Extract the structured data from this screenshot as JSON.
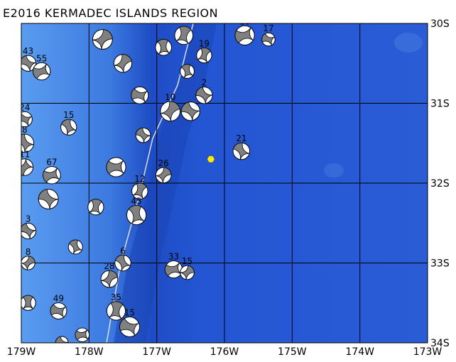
{
  "title": "E2016 KERMADEC ISLANDS REGION",
  "map": {
    "lon_range": [
      -179,
      -173
    ],
    "lat_range": [
      -34,
      -30
    ],
    "lon_ticks": [
      {
        "value": -179,
        "label": "179W"
      },
      {
        "value": -178,
        "label": "178W"
      },
      {
        "value": -177,
        "label": "177W"
      },
      {
        "value": -176,
        "label": "176W"
      },
      {
        "value": -175,
        "label": "175W"
      },
      {
        "value": -174,
        "label": "174W"
      },
      {
        "value": -173,
        "label": "173W"
      }
    ],
    "lat_ticks": [
      {
        "value": -30,
        "label": "30S"
      },
      {
        "value": -31,
        "label": "31S"
      },
      {
        "value": -32,
        "label": "32S"
      },
      {
        "value": -33,
        "label": "33S"
      },
      {
        "value": -34,
        "label": "34S"
      }
    ],
    "grid": true,
    "colors": {
      "ocean": "#2456d4",
      "shallow": "#4f8fe8",
      "deep": "#1a46b8",
      "beachball_fill": "#808080",
      "epicenter": "#ffee00"
    },
    "epicenter": {
      "lon": -176.2,
      "lat": -31.7,
      "marker": "yellow-hexagon"
    },
    "events": [
      {
        "lon": -175.7,
        "lat": -30.15,
        "label": "10"
      },
      {
        "lon": -175.35,
        "lat": -30.2,
        "label": "17"
      },
      {
        "lon": -175.75,
        "lat": -31.6,
        "label": "21"
      },
      {
        "lon": -176.9,
        "lat": -31.9,
        "label": "26"
      },
      {
        "lon": -177.25,
        "lat": -32.1,
        "label": "12"
      },
      {
        "lon": -176.75,
        "lat": -33.08,
        "label": "33"
      },
      {
        "lon": -176.55,
        "lat": -33.12,
        "label": "15"
      },
      {
        "lon": -176.3,
        "lat": -30.4,
        "label": "19"
      },
      {
        "lon": -176.3,
        "lat": -30.9,
        "label": "2"
      },
      {
        "lon": -176.8,
        "lat": -31.1,
        "label": "10"
      },
      {
        "lon": -176.5,
        "lat": -31.1,
        "label": ""
      },
      {
        "lon": -176.55,
        "lat": -30.6,
        "label": ""
      },
      {
        "lon": -177.4,
        "lat": -33.8,
        "label": "15"
      },
      {
        "lon": -177.6,
        "lat": -33.6,
        "label": "35"
      },
      {
        "lon": -177.5,
        "lat": -33.0,
        "label": "6"
      },
      {
        "lon": -177.3,
        "lat": -32.4,
        "label": "45"
      },
      {
        "lon": -178.9,
        "lat": -30.5,
        "label": "43"
      },
      {
        "lon": -178.7,
        "lat": -30.6,
        "label": "55"
      },
      {
        "lon": -178.95,
        "lat": -31.2,
        "label": "24"
      },
      {
        "lon": -178.95,
        "lat": -31.5,
        "label": "8"
      },
      {
        "lon": -178.95,
        "lat": -31.8,
        "label": "11"
      },
      {
        "lon": -178.55,
        "lat": -31.9,
        "label": "67"
      },
      {
        "lon": -178.9,
        "lat": -32.6,
        "label": "3"
      },
      {
        "lon": -178.9,
        "lat": -33.0,
        "label": "8"
      },
      {
        "lon": -178.9,
        "lat": -33.5,
        "label": ""
      },
      {
        "lon": -178.45,
        "lat": -33.6,
        "label": "49"
      },
      {
        "lon": -178.4,
        "lat": -34.0,
        "label": ""
      },
      {
        "lon": -178.1,
        "lat": -33.9,
        "label": ""
      },
      {
        "lon": -178.3,
        "lat": -31.3,
        "label": "15"
      },
      {
        "lon": -177.8,
        "lat": -30.2,
        "label": ""
      },
      {
        "lon": -177.5,
        "lat": -30.5,
        "label": ""
      },
      {
        "lon": -177.2,
        "lat": -31.4,
        "label": ""
      },
      {
        "lon": -177.9,
        "lat": -32.3,
        "label": ""
      },
      {
        "lon": -178.2,
        "lat": -32.8,
        "label": ""
      },
      {
        "lon": -177.7,
        "lat": -33.2,
        "label": "28"
      },
      {
        "lon": -178.6,
        "lat": -32.2,
        "label": ""
      },
      {
        "lon": -177.6,
        "lat": -31.8,
        "label": ""
      },
      {
        "lon": -176.9,
        "lat": -30.3,
        "label": ""
      },
      {
        "lon": -176.6,
        "lat": -30.15,
        "label": ""
      },
      {
        "lon": -177.25,
        "lat": -30.9,
        "label": ""
      }
    ]
  }
}
